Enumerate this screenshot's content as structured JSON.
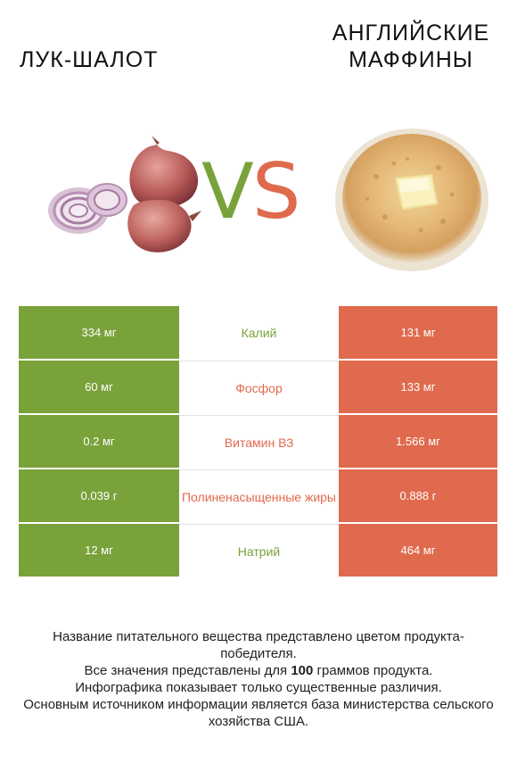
{
  "left_title": "ЛУК-ШАЛОТ",
  "right_title": "АНГЛИЙСКИЕ МАФФИНЫ",
  "vs": {
    "v": "V",
    "s": "S"
  },
  "colors": {
    "left": "#7aa23a",
    "right": "#e06a4d"
  },
  "rows": [
    {
      "left": "334 мг",
      "nutrient": "Калий",
      "winner": "left",
      "right": "131 мг"
    },
    {
      "left": "60 мг",
      "nutrient": "Фосфор",
      "winner": "right",
      "right": "133 мг"
    },
    {
      "left": "0.2 мг",
      "nutrient": "Витамин B3",
      "winner": "right",
      "right": "1.566 мг"
    },
    {
      "left": "0.039 г",
      "nutrient": "Полиненасыщенные жиры",
      "winner": "right",
      "right": "0.888 г"
    },
    {
      "left": "12 мг",
      "nutrient": "Натрий",
      "winner": "left",
      "right": "464 мг"
    }
  ],
  "footer": {
    "line1": "Название питательного вещества представлено цветом продукта-победителя.",
    "line2_pre": "Все значения представлены для ",
    "line2_bold": "100",
    "line2_post": " граммов продукта.",
    "line3": "Инфографика показывает только существенные различия.",
    "line4": "Основным источником информации является база министерства сельского хозяйства США."
  }
}
